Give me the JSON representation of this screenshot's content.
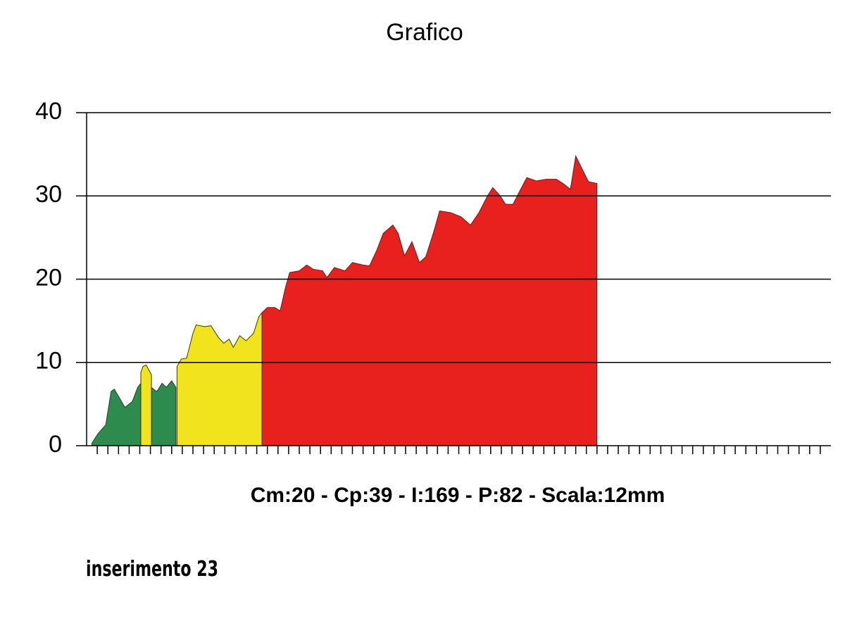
{
  "chart_data": {
    "type": "area",
    "title": "Grafico",
    "annotation": "Cm:20  -  Cp:39  -  I:169  -  P:82  -  Scala:12mm",
    "footnote": "inserimento 23",
    "xlim": [
      0,
      70
    ],
    "xticks": [
      1,
      2,
      3,
      4,
      5,
      6,
      7,
      8,
      9,
      10,
      11,
      12,
      13,
      14,
      15,
      16,
      17,
      18,
      19,
      20,
      21,
      22,
      23,
      24,
      25,
      26,
      27,
      28,
      29,
      30,
      31,
      32,
      33,
      34,
      35,
      36,
      37,
      38,
      39,
      40,
      41,
      42,
      43,
      44,
      45,
      46,
      47,
      48,
      49,
      50,
      51,
      52,
      53,
      54,
      55,
      56,
      57,
      58,
      59,
      60,
      61,
      62,
      63,
      64,
      65,
      66,
      67,
      68,
      69
    ],
    "ylim": [
      0,
      40
    ],
    "yticks": [
      0,
      10,
      20,
      30,
      40
    ],
    "grid": true,
    "series": [
      {
        "color": "#2e8b4e",
        "x": [
          0.5,
          1.1,
          1.8,
          2.3,
          2.6,
          3.2,
          3.6,
          4.3,
          4.8,
          5.1,
          null,
          6.1,
          6.6,
          7.1,
          7.5,
          8.0,
          8.4
        ],
        "values": [
          0.3,
          1.5,
          2.5,
          6.5,
          6.8,
          5.5,
          4.6,
          5.3,
          7.0,
          7.5,
          null,
          7.0,
          6.5,
          7.5,
          7.0,
          7.8,
          7.0
        ]
      },
      {
        "color": "#f2e41c",
        "x": [
          5.1,
          5.3,
          5.6,
          6.1,
          null,
          8.5,
          8.9,
          9.4,
          10.0,
          10.3,
          11.1,
          11.7,
          12.4,
          12.9,
          13.4,
          13.8,
          14.4,
          15.0,
          15.7,
          16.2,
          16.5
        ],
        "values": [
          8.8,
          9.5,
          9.7,
          8.5,
          null,
          9.5,
          10.4,
          10.5,
          13.5,
          14.5,
          14.3,
          14.4,
          13.0,
          12.3,
          12.8,
          11.8,
          13.2,
          12.6,
          13.5,
          15.5,
          16.0
        ]
      },
      {
        "color": "#e8201e",
        "x": [
          16.5,
          17.0,
          17.7,
          18.2,
          18.7,
          19.1,
          20.0,
          20.7,
          21.3,
          22.2,
          22.6,
          23.3,
          24.3,
          25.0,
          26.0,
          26.6,
          27.3,
          27.9,
          28.8,
          29.3,
          29.9,
          30.6,
          31.3,
          31.9,
          32.6,
          33.2,
          34.2,
          35.2,
          36.1,
          36.9,
          37.7,
          38.2,
          38.9,
          39.4,
          40.1,
          40.7,
          41.4,
          42.3,
          43.2,
          44.2,
          44.8,
          45.5,
          46.0,
          46.5,
          47.2,
          48.0
        ],
        "values": [
          16.0,
          16.6,
          16.6,
          16.2,
          19.0,
          20.8,
          21.0,
          21.7,
          21.2,
          21.0,
          20.2,
          21.4,
          21.0,
          22.0,
          21.7,
          21.6,
          23.5,
          25.5,
          26.5,
          25.5,
          22.8,
          24.5,
          22.0,
          22.7,
          25.5,
          28.2,
          28.0,
          27.5,
          26.5,
          28.0,
          30.0,
          31.0,
          30.0,
          29.0,
          29.0,
          30.5,
          32.2,
          31.8,
          32.0,
          32.0,
          31.5,
          30.8,
          34.8,
          33.5,
          31.7,
          31.5
        ]
      }
    ]
  }
}
